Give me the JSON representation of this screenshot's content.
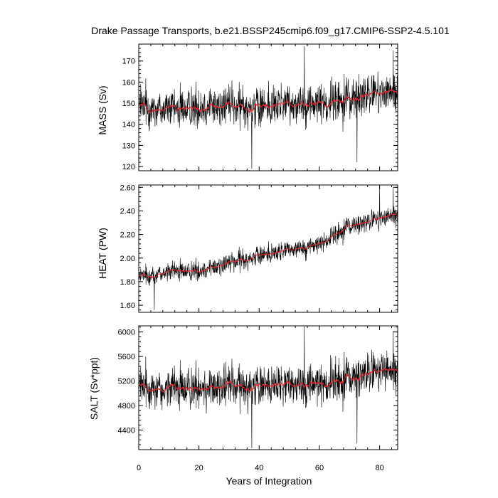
{
  "chart_data": {
    "type": "line",
    "title": "Drake Passage Transports, b.e21.BSSP245cmip6.f09_g17.CMIP6-SSP2-4.5.101",
    "xlabel": "Years of Integration",
    "xlim": [
      0,
      86
    ],
    "x_ticks": [
      "0",
      "20",
      "40",
      "60",
      "80"
    ],
    "colors": {
      "raw": "#000000",
      "smoothed": "#e8262c"
    },
    "panels": [
      {
        "ylabel": "MASS (Sv)",
        "ylim": [
          118,
          178
        ],
        "y_ticks": [
          "120",
          "130",
          "140",
          "150",
          "160",
          "170"
        ],
        "trend": [
          [
            0,
            148
          ],
          [
            10,
            147
          ],
          [
            20,
            148.5
          ],
          [
            30,
            149
          ],
          [
            40,
            148.5
          ],
          [
            50,
            150
          ],
          [
            60,
            149.5
          ],
          [
            70,
            152
          ],
          [
            80,
            155
          ],
          [
            85,
            154
          ]
        ],
        "noise": 8,
        "extremes": [
          [
            37.5,
            119
          ],
          [
            72.5,
            122
          ],
          [
            55,
            177
          ],
          [
            84.5,
            175
          ]
        ]
      },
      {
        "ylabel": "HEAT (PW)",
        "ylim": [
          1.54,
          2.62
        ],
        "y_ticks": [
          "1.60",
          "1.80",
          "2.00",
          "2.20",
          "2.40",
          "2.60"
        ],
        "trend": [
          [
            0,
            1.84
          ],
          [
            10,
            1.88
          ],
          [
            20,
            1.9
          ],
          [
            30,
            1.96
          ],
          [
            40,
            2.02
          ],
          [
            50,
            2.07
          ],
          [
            60,
            2.12
          ],
          [
            70,
            2.27
          ],
          [
            80,
            2.33
          ],
          [
            85,
            2.36
          ]
        ],
        "noise": 0.07,
        "extremes": [
          [
            5.2,
            1.56
          ],
          [
            80,
            2.6
          ],
          [
            84.5,
            2.6
          ]
        ]
      },
      {
        "ylabel": "SALT (Sv*ppt)",
        "ylim": [
          4080,
          6100
        ],
        "y_ticks": [
          "4400",
          "4800",
          "5200",
          "5600",
          "6000"
        ],
        "trend": [
          [
            0,
            5100
          ],
          [
            10,
            5060
          ],
          [
            20,
            5110
          ],
          [
            30,
            5130
          ],
          [
            40,
            5120
          ],
          [
            50,
            5160
          ],
          [
            60,
            5150
          ],
          [
            70,
            5230
          ],
          [
            80,
            5360
          ],
          [
            85,
            5330
          ]
        ],
        "noise": 280,
        "extremes": [
          [
            37.5,
            4100
          ],
          [
            72.5,
            4180
          ],
          [
            55,
            6090
          ],
          [
            84.5,
            6020
          ]
        ]
      }
    ]
  }
}
